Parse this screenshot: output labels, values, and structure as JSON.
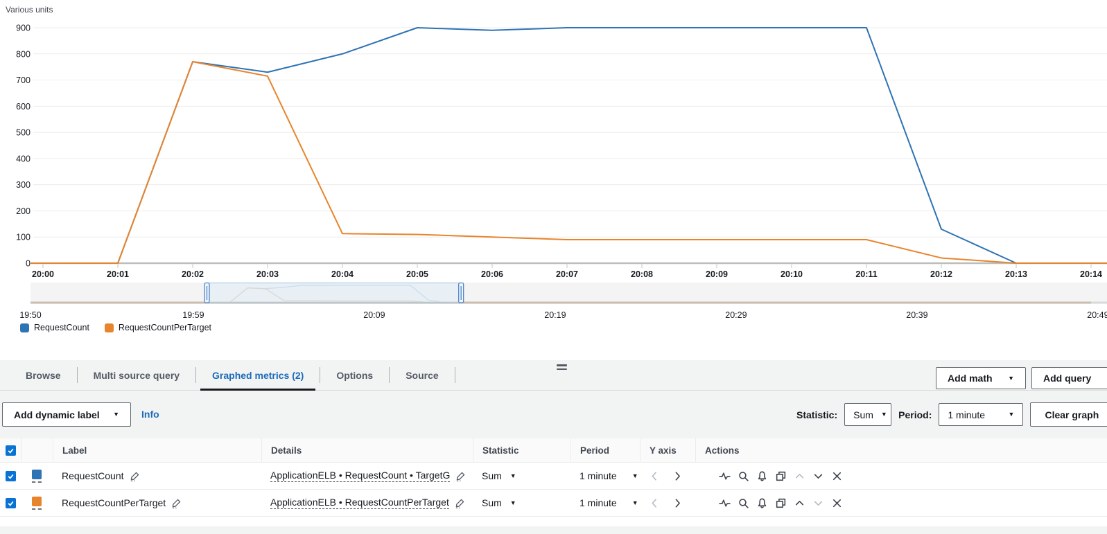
{
  "colors": {
    "accent_blue": "#0972d3",
    "link_blue": "#1c6bb8",
    "active_tab_underline": "#16191f"
  },
  "chart_data": {
    "type": "line",
    "title": "",
    "ylabel": "Various units",
    "categories": [
      "20:00",
      "20:01",
      "20:02",
      "20:03",
      "20:04",
      "20:05",
      "20:06",
      "20:07",
      "20:08",
      "20:09",
      "20:10",
      "20:11",
      "20:12",
      "20:13",
      "20:14"
    ],
    "series": [
      {
        "name": "RequestCount",
        "color": "#2e73b4",
        "values": [
          0,
          0,
          770,
          730,
          800,
          900,
          890,
          900,
          900,
          900,
          900,
          900,
          130,
          0,
          0
        ]
      },
      {
        "name": "RequestCountPerTarget",
        "color": "#e8842c",
        "values": [
          0,
          0,
          770,
          715,
          113,
          110,
          100,
          90,
          90,
          90,
          90,
          90,
          20,
          0,
          0
        ]
      }
    ],
    "ylim": [
      0,
      900
    ],
    "y_ticks": [
      0,
      100,
      200,
      300,
      400,
      500,
      600,
      700,
      800,
      900
    ],
    "grid": "horizontal",
    "legend_position": "bottom-left",
    "navigator": {
      "axis_labels": [
        "19:50",
        "19:59",
        "20:09",
        "20:19",
        "20:29",
        "20:39",
        "20:49"
      ],
      "selection_window_minutes": [
        9.75,
        23.8
      ],
      "faded_series_colors": [
        "#b9cfe6",
        "#dcc5aa"
      ]
    }
  },
  "tabs": {
    "items": [
      {
        "label": "Browse"
      },
      {
        "label": "Multi source query"
      },
      {
        "label": "Graphed metrics (2)"
      },
      {
        "label": "Options"
      },
      {
        "label": "Source"
      }
    ]
  },
  "tab_actions": {
    "add_math": "Add math",
    "add_query": "Add query"
  },
  "toolbar": {
    "add_dynamic_label": "Add dynamic label",
    "info": "Info",
    "statistic_label": "Statistic:",
    "statistic_value": "Sum",
    "period_label": "Period:",
    "period_value": "1 minute",
    "clear_graph": "Clear graph"
  },
  "table": {
    "headers": {
      "label": "Label",
      "details": "Details",
      "statistic": "Statistic",
      "period": "Period",
      "y_axis": "Y axis",
      "actions": "Actions"
    },
    "rows": [
      {
        "label": "RequestCount",
        "details": "ApplicationELB • RequestCount • TargetG",
        "statistic": "Sum",
        "period": "1 minute",
        "color": "#2e73b4",
        "checked": true
      },
      {
        "label": "RequestCountPerTarget",
        "details": "ApplicationELB • RequestCountPerTarget",
        "statistic": "Sum",
        "period": "1 minute",
        "color": "#e8842c",
        "checked": true
      }
    ]
  }
}
